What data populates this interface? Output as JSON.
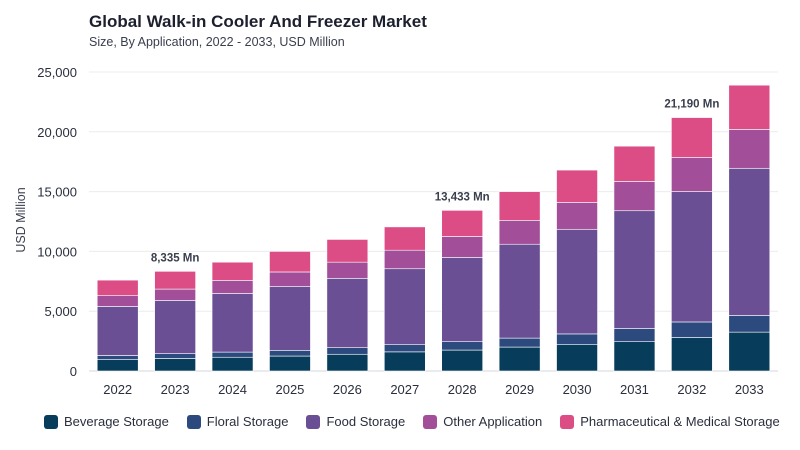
{
  "header": {
    "title": "Global Walk-in Cooler And Freezer Market",
    "subtitle": "Size, By Application, 2022 - 2033, USD Million"
  },
  "chart_data": {
    "type": "bar",
    "stacked": true,
    "categories": [
      "2022",
      "2023",
      "2024",
      "2025",
      "2026",
      "2027",
      "2028",
      "2029",
      "2030",
      "2031",
      "2032",
      "2033"
    ],
    "series": [
      {
        "name": "Beverage Storage",
        "color": "#073c5b",
        "values": [
          950,
          1050,
          1150,
          1250,
          1400,
          1600,
          1750,
          2000,
          2200,
          2450,
          2800,
          3250
        ]
      },
      {
        "name": "Floral Storage",
        "color": "#2d4a7e",
        "values": [
          350,
          400,
          430,
          480,
          550,
          600,
          700,
          750,
          900,
          1100,
          1300,
          1400
        ]
      },
      {
        "name": "Food Storage",
        "color": "#6a4f94",
        "values": [
          4100,
          4450,
          4900,
          5350,
          5800,
          6350,
          7050,
          7850,
          8750,
          9850,
          10900,
          12300
        ]
      },
      {
        "name": "Other Application",
        "color": "#a34e98",
        "values": [
          900,
          950,
          1100,
          1200,
          1350,
          1550,
          1750,
          2000,
          2250,
          2450,
          2850,
          3250
        ]
      },
      {
        "name": "Pharmaceutical & Medical Storage",
        "color": "#dc4d86",
        "values": [
          1300,
          1485,
          1520,
          1720,
          1900,
          1950,
          2183,
          2400,
          2700,
          2950,
          3340,
          3700
        ]
      }
    ],
    "ylabel": "USD Million",
    "xlabel": "",
    "ylim": [
      0,
      25000
    ],
    "yticks": [
      0,
      5000,
      10000,
      15000,
      20000,
      25000
    ],
    "ytick_labels": [
      "0",
      "5,000",
      "10,000",
      "15,000",
      "20,000",
      "25,000"
    ],
    "annotations": [
      {
        "category": "2023",
        "text": "8,335 Mn"
      },
      {
        "category": "2028",
        "text": "13,433 Mn"
      },
      {
        "category": "2032",
        "text": "21,190 Mn"
      }
    ],
    "grid": true,
    "legend_position": "bottom"
  }
}
